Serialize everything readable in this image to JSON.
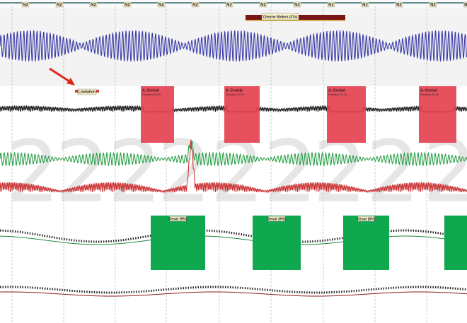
{
  "stage_bar": {
    "labels": [
      "N2",
      "N2",
      "N2",
      "N2",
      "N2",
      "N2",
      "N2",
      "N2",
      "N2",
      "N2",
      "N2",
      "N2",
      "N2",
      "N2"
    ]
  },
  "events": {
    "cheyne_stokes": "Cheyne Stokes (37s)",
    "limitation": "Limitation",
    "central_apneas": [
      {
        "label": "A. Central",
        "duration": "Duration 19.2s"
      },
      {
        "label": "A. Central",
        "duration": "Duration 23.7s"
      },
      {
        "label": "A. Central",
        "duration": "Duration 22.7s"
      },
      {
        "label": "A. Central",
        "duration": "Duration 20.5s"
      }
    ],
    "desaturations": [
      "Desat (9%)",
      "Desat (9%)",
      "Desat (6%)"
    ]
  },
  "watermark": [
    "2",
    "2",
    "2",
    "2",
    "2",
    "2",
    "2",
    "2",
    "2"
  ]
}
